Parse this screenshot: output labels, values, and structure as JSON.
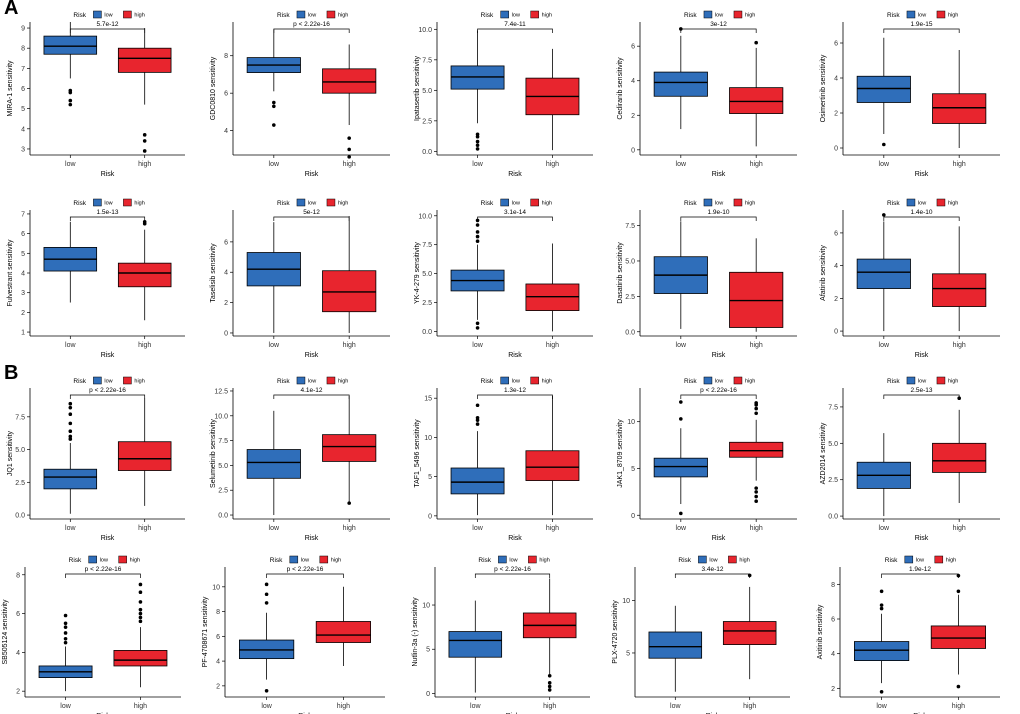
{
  "panel_labels": [
    "A",
    "B"
  ],
  "legend": {
    "title": "Risk",
    "items": [
      {
        "label": "low",
        "color": "#2f6eba"
      },
      {
        "label": "high",
        "color": "#e8252e"
      }
    ]
  },
  "colors": {
    "low": "#2f6eba",
    "high": "#e8252e"
  },
  "chart_data": [
    {
      "type": "box",
      "panel": "A",
      "ylabel": "MIRA-1 sensitivity",
      "xlabel": "Risk",
      "categories": [
        "low",
        "high"
      ],
      "pvalue": "5.7e-12",
      "ylim": [
        2.7,
        9.3
      ],
      "yticks": [
        3,
        4,
        5,
        6,
        7,
        8,
        9
      ],
      "boxes": [
        {
          "group": "low",
          "q1": 7.7,
          "median": 8.1,
          "q3": 8.6,
          "whisker_low": 6.5,
          "whisker_high": 9.3,
          "outliers": [
            5.2,
            5.4,
            5.8,
            5.9
          ]
        },
        {
          "group": "high",
          "q1": 6.8,
          "median": 7.5,
          "q3": 8.0,
          "whisker_low": 5.2,
          "whisker_high": 9.0,
          "outliers": [
            2.9,
            3.4,
            3.7
          ]
        }
      ]
    },
    {
      "type": "box",
      "panel": "A",
      "ylabel": "GDC0810 sensitivity",
      "xlabel": "Risk",
      "categories": [
        "low",
        "high"
      ],
      "pvalue": "p < 2.22e-16",
      "ylim": [
        2.7,
        9.8
      ],
      "yticks": [
        4,
        6,
        8
      ],
      "boxes": [
        {
          "group": "low",
          "q1": 7.1,
          "median": 7.5,
          "q3": 7.9,
          "whisker_low": 6.1,
          "whisker_high": 9.4,
          "outliers": [
            4.3,
            5.3,
            5.5
          ]
        },
        {
          "group": "high",
          "q1": 6.0,
          "median": 6.6,
          "q3": 7.3,
          "whisker_low": 4.3,
          "whisker_high": 8.6,
          "outliers": [
            2.6,
            3.0,
            3.6
          ]
        }
      ]
    },
    {
      "type": "box",
      "panel": "A",
      "ylabel": "Ipatasertib sensitivity",
      "xlabel": "Risk",
      "categories": [
        "low",
        "high"
      ],
      "pvalue": "7.4e-11",
      "ylim": [
        -0.3,
        10.6
      ],
      "yticks": [
        0.0,
        2.5,
        5.0,
        7.5,
        10.0
      ],
      "boxes": [
        {
          "group": "low",
          "q1": 5.1,
          "median": 6.1,
          "q3": 7.0,
          "whisker_low": 2.3,
          "whisker_high": 9.9,
          "outliers": [
            0.2,
            0.5,
            0.8,
            1.2,
            1.4
          ]
        },
        {
          "group": "high",
          "q1": 3.0,
          "median": 4.5,
          "q3": 6.0,
          "whisker_low": 0.1,
          "whisker_high": 8.4,
          "outliers": []
        }
      ]
    },
    {
      "type": "box",
      "panel": "A",
      "ylabel": "Cediranib sensitivity",
      "xlabel": "Risk",
      "categories": [
        "low",
        "high"
      ],
      "pvalue": "3e-12",
      "ylim": [
        -0.3,
        7.4
      ],
      "yticks": [
        0,
        2,
        4,
        6
      ],
      "boxes": [
        {
          "group": "low",
          "q1": 3.1,
          "median": 3.9,
          "q3": 4.5,
          "whisker_low": 1.2,
          "whisker_high": 6.6,
          "outliers": [
            7.0
          ]
        },
        {
          "group": "high",
          "q1": 2.1,
          "median": 2.8,
          "q3": 3.6,
          "whisker_low": 0.2,
          "whisker_high": 5.9,
          "outliers": [
            6.2
          ]
        }
      ]
    },
    {
      "type": "box",
      "panel": "A",
      "ylabel": "Osimertinib sensitivity",
      "xlabel": "Risk",
      "categories": [
        "low",
        "high"
      ],
      "pvalue": "1.9e-15",
      "ylim": [
        -0.4,
        7.2
      ],
      "yticks": [
        0,
        2,
        4,
        6
      ],
      "boxes": [
        {
          "group": "low",
          "q1": 2.6,
          "median": 3.4,
          "q3": 4.1,
          "whisker_low": 0.8,
          "whisker_high": 6.3,
          "outliers": [
            0.2
          ]
        },
        {
          "group": "high",
          "q1": 1.4,
          "median": 2.3,
          "q3": 3.1,
          "whisker_low": 0.0,
          "whisker_high": 5.6,
          "outliers": []
        }
      ]
    },
    {
      "type": "box",
      "panel": "A",
      "ylabel": "Fulvestrant sensitivity",
      "xlabel": "Risk",
      "categories": [
        "low",
        "high"
      ],
      "pvalue": "1.5e-13",
      "ylim": [
        0.8,
        7.2
      ],
      "yticks": [
        1,
        2,
        3,
        4,
        5,
        6,
        7
      ],
      "boxes": [
        {
          "group": "low",
          "q1": 4.1,
          "median": 4.7,
          "q3": 5.3,
          "whisker_low": 2.5,
          "whisker_high": 6.6,
          "outliers": []
        },
        {
          "group": "high",
          "q1": 3.3,
          "median": 4.0,
          "q3": 4.5,
          "whisker_low": 1.6,
          "whisker_high": 6.2,
          "outliers": [
            6.5,
            6.6
          ]
        }
      ]
    },
    {
      "type": "box",
      "panel": "A",
      "ylabel": "Taselisib sensitivity",
      "xlabel": "Risk",
      "categories": [
        "low",
        "high"
      ],
      "pvalue": "5e-12",
      "ylim": [
        -0.2,
        8.1
      ],
      "yticks": [
        0,
        2,
        4,
        6
      ],
      "boxes": [
        {
          "group": "low",
          "q1": 3.1,
          "median": 4.2,
          "q3": 5.3,
          "whisker_low": 0.0,
          "whisker_high": 7.3,
          "outliers": []
        },
        {
          "group": "high",
          "q1": 1.4,
          "median": 2.7,
          "q3": 4.1,
          "whisker_low": 0.0,
          "whisker_high": 7.7,
          "outliers": []
        }
      ]
    },
    {
      "type": "box",
      "panel": "A",
      "ylabel": "YK-4-279 sensitivity",
      "xlabel": "Risk",
      "categories": [
        "low",
        "high"
      ],
      "pvalue": "3.1e-14",
      "ylim": [
        -0.4,
        10.5
      ],
      "yticks": [
        0.0,
        2.5,
        5.0,
        7.5,
        10.0
      ],
      "boxes": [
        {
          "group": "low",
          "q1": 3.5,
          "median": 4.4,
          "q3": 5.3,
          "whisker_low": 1.0,
          "whisker_high": 7.5,
          "outliers": [
            0.3,
            0.7,
            7.8,
            8.2,
            8.6,
            9.2,
            9.6
          ]
        },
        {
          "group": "high",
          "q1": 1.8,
          "median": 3.0,
          "q3": 4.1,
          "whisker_low": 0.0,
          "whisker_high": 7.6,
          "outliers": []
        }
      ]
    },
    {
      "type": "box",
      "panel": "A",
      "ylabel": "Dasatinib sensitivity",
      "xlabel": "Risk",
      "categories": [
        "low",
        "high"
      ],
      "pvalue": "1.9e-10",
      "ylim": [
        -0.3,
        8.6
      ],
      "yticks": [
        0.0,
        2.5,
        5.0,
        7.5
      ],
      "boxes": [
        {
          "group": "low",
          "q1": 2.7,
          "median": 4.0,
          "q3": 5.3,
          "whisker_low": 0.2,
          "whisker_high": 7.8,
          "outliers": []
        },
        {
          "group": "high",
          "q1": 0.3,
          "median": 2.2,
          "q3": 4.2,
          "whisker_low": 0.0,
          "whisker_high": 6.6,
          "outliers": []
        }
      ]
    },
    {
      "type": "box",
      "panel": "A",
      "ylabel": "Afatinib sensitivity",
      "xlabel": "Risk",
      "categories": [
        "low",
        "high"
      ],
      "pvalue": "1.4e-10",
      "ylim": [
        -0.3,
        7.4
      ],
      "yticks": [
        0,
        2,
        4,
        6
      ],
      "boxes": [
        {
          "group": "low",
          "q1": 2.6,
          "median": 3.6,
          "q3": 4.4,
          "whisker_low": 0.0,
          "whisker_high": 6.7,
          "outliers": [
            7.1
          ]
        },
        {
          "group": "high",
          "q1": 1.5,
          "median": 2.6,
          "q3": 3.5,
          "whisker_low": 0.0,
          "whisker_high": 6.4,
          "outliers": []
        }
      ]
    },
    {
      "type": "box",
      "panel": "B",
      "ylabel": "JQ1 sensitivity",
      "xlabel": "Risk",
      "categories": [
        "low",
        "high"
      ],
      "pvalue": "p < 2.22e-16",
      "ylim": [
        -0.3,
        9.7
      ],
      "yticks": [
        0.0,
        2.5,
        5.0,
        7.5
      ],
      "boxes": [
        {
          "group": "low",
          "q1": 2.0,
          "median": 2.9,
          "q3": 3.5,
          "whisker_low": 0.1,
          "whisker_high": 5.5,
          "outliers": [
            5.8,
            6.0,
            6.4,
            7.0,
            7.7,
            8.2,
            8.5
          ]
        },
        {
          "group": "high",
          "q1": 3.4,
          "median": 4.3,
          "q3": 5.6,
          "whisker_low": 0.7,
          "whisker_high": 8.9,
          "outliers": []
        }
      ]
    },
    {
      "type": "box",
      "panel": "B",
      "ylabel": "Selumetinib sensitivity",
      "xlabel": "Risk",
      "categories": [
        "low",
        "high"
      ],
      "pvalue": "4.1e-12",
      "ylim": [
        -0.4,
        12.8
      ],
      "yticks": [
        0.0,
        2.5,
        5.0,
        7.5,
        10.0,
        12.5
      ],
      "boxes": [
        {
          "group": "low",
          "q1": 3.7,
          "median": 5.3,
          "q3": 6.6,
          "whisker_low": 0.0,
          "whisker_high": 10.5,
          "outliers": []
        },
        {
          "group": "high",
          "q1": 5.4,
          "median": 6.9,
          "q3": 8.1,
          "whisker_low": 1.3,
          "whisker_high": 12.0,
          "outliers": [
            1.2
          ]
        }
      ]
    },
    {
      "type": "box",
      "panel": "B",
      "ylabel": "TAF1_5496 sensitivity",
      "xlabel": "Risk",
      "categories": [
        "low",
        "high"
      ],
      "pvalue": "1.3e-12",
      "ylim": [
        -0.4,
        16.3
      ],
      "yticks": [
        0,
        5,
        10,
        15
      ],
      "boxes": [
        {
          "group": "low",
          "q1": 2.8,
          "median": 4.3,
          "q3": 6.1,
          "whisker_low": 0.1,
          "whisker_high": 10.8,
          "outliers": [
            11.7,
            12.2,
            12.5,
            14.1
          ]
        },
        {
          "group": "high",
          "q1": 4.5,
          "median": 6.2,
          "q3": 8.3,
          "whisker_low": 0.1,
          "whisker_high": 15.3,
          "outliers": []
        }
      ]
    },
    {
      "type": "box",
      "panel": "B",
      "ylabel": "JAK1_8709 sensitivity",
      "xlabel": "Risk",
      "categories": [
        "low",
        "high"
      ],
      "pvalue": "p < 2.22e-16",
      "ylim": [
        -0.4,
        13.6
      ],
      "yticks": [
        0,
        5,
        10
      ],
      "boxes": [
        {
          "group": "low",
          "q1": 4.1,
          "median": 5.2,
          "q3": 6.1,
          "whisker_low": 1.2,
          "whisker_high": 9.3,
          "outliers": [
            0.2,
            10.3,
            12.1
          ]
        },
        {
          "group": "high",
          "q1": 6.2,
          "median": 6.9,
          "q3": 7.8,
          "whisker_low": 3.7,
          "whisker_high": 10.2,
          "outliers": [
            1.5,
            2.0,
            2.5,
            2.9,
            10.9,
            11.4,
            11.8,
            12.0
          ]
        }
      ]
    },
    {
      "type": "box",
      "panel": "B",
      "ylabel": "AZD2014 sensitivity",
      "xlabel": "Risk",
      "categories": [
        "low",
        "high"
      ],
      "pvalue": "2.5e-13",
      "ylim": [
        -0.2,
        8.8
      ],
      "yticks": [
        0.0,
        2.5,
        5.0,
        7.5
      ],
      "boxes": [
        {
          "group": "low",
          "q1": 1.9,
          "median": 2.8,
          "q3": 3.7,
          "whisker_low": 0.0,
          "whisker_high": 5.7,
          "outliers": []
        },
        {
          "group": "high",
          "q1": 3.0,
          "median": 3.8,
          "q3": 5.0,
          "whisker_low": 0.9,
          "whisker_high": 7.3,
          "outliers": [
            8.1
          ]
        }
      ]
    },
    {
      "type": "box",
      "panel": "B",
      "ylabel": "SB505124 sensitivity",
      "xlabel": "Risk",
      "categories": [
        "low",
        "high"
      ],
      "pvalue": "p < 2.22e-16",
      "ylim": [
        1.7,
        8.4
      ],
      "yticks": [
        2,
        4,
        6,
        8
      ],
      "boxes": [
        {
          "group": "low",
          "q1": 2.7,
          "median": 3.0,
          "q3": 3.3,
          "whisker_low": 2.0,
          "whisker_high": 4.3,
          "outliers": [
            4.5,
            4.7,
            5.0,
            5.3,
            5.5,
            5.9
          ]
        },
        {
          "group": "high",
          "q1": 3.3,
          "median": 3.6,
          "q3": 4.1,
          "whisker_low": 2.2,
          "whisker_high": 5.3,
          "outliers": [
            5.6,
            5.8,
            6.0,
            6.2,
            6.6,
            7.1,
            7.5
          ]
        }
      ]
    },
    {
      "type": "box",
      "panel": "B",
      "ylabel": "PF-4708671 sensitivity",
      "xlabel": "Risk",
      "categories": [
        "low",
        "high"
      ],
      "pvalue": "p < 2.22e-16",
      "ylim": [
        1.1,
        11.6
      ],
      "yticks": [
        2,
        4,
        6,
        8,
        10
      ],
      "boxes": [
        {
          "group": "low",
          "q1": 4.2,
          "median": 4.9,
          "q3": 5.7,
          "whisker_low": 2.5,
          "whisker_high": 7.9,
          "outliers": [
            1.6,
            8.7,
            9.4,
            10.2
          ]
        },
        {
          "group": "high",
          "q1": 5.5,
          "median": 6.1,
          "q3": 7.2,
          "whisker_low": 3.6,
          "whisker_high": 10.0,
          "outliers": []
        }
      ]
    },
    {
      "type": "box",
      "panel": "B",
      "ylabel": "Nutlin-3a (-) sensitivity",
      "xlabel": "Risk",
      "categories": [
        "low",
        "high"
      ],
      "pvalue": "p < 2.22e-16",
      "ylim": [
        -0.4,
        14.3
      ],
      "yticks": [
        0,
        5,
        10
      ],
      "boxes": [
        {
          "group": "low",
          "q1": 4.1,
          "median": 6.0,
          "q3": 7.0,
          "whisker_low": 0.1,
          "whisker_high": 10.5,
          "outliers": []
        },
        {
          "group": "high",
          "q1": 6.3,
          "median": 7.7,
          "q3": 9.1,
          "whisker_low": 2.2,
          "whisker_high": 13.0,
          "outliers": [
            0.4,
            0.8,
            1.2,
            2.0
          ]
        }
      ]
    },
    {
      "type": "box",
      "panel": "B",
      "ylabel": "PLX-4720 sensitivity",
      "xlabel": "Risk",
      "categories": [
        "low",
        "high"
      ],
      "pvalue": "3.4e-12",
      "ylim": [
        0.8,
        13.2
      ],
      "yticks": [
        5,
        10
      ],
      "boxes": [
        {
          "group": "low",
          "q1": 4.5,
          "median": 5.6,
          "q3": 7.0,
          "whisker_low": 1.3,
          "whisker_high": 9.5,
          "outliers": []
        },
        {
          "group": "high",
          "q1": 5.8,
          "median": 7.1,
          "q3": 8.0,
          "whisker_low": 2.5,
          "whisker_high": 11.3,
          "outliers": [
            12.4
          ]
        }
      ]
    },
    {
      "type": "box",
      "panel": "B",
      "ylabel": "Axitinib sensitivity",
      "xlabel": "Risk",
      "categories": [
        "low",
        "high"
      ],
      "pvalue": "1.9e-12",
      "ylim": [
        1.5,
        9.0
      ],
      "yticks": [
        2,
        4,
        6,
        8
      ],
      "boxes": [
        {
          "group": "low",
          "q1": 3.6,
          "median": 4.2,
          "q3": 4.7,
          "whisker_low": 2.3,
          "whisker_high": 6.3,
          "outliers": [
            1.8,
            6.6,
            6.8,
            7.6
          ]
        },
        {
          "group": "high",
          "q1": 4.3,
          "median": 4.9,
          "q3": 5.6,
          "whisker_low": 2.8,
          "whisker_high": 7.4,
          "outliers": [
            2.1,
            7.6,
            8.5
          ]
        }
      ]
    }
  ]
}
